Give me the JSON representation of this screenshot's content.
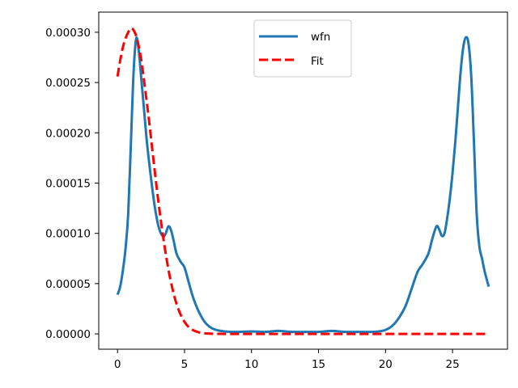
{
  "chart_data": {
    "type": "line",
    "title": "",
    "xlabel": "",
    "ylabel": "",
    "xlim": [
      -1.4,
      29.1
    ],
    "ylim": [
      -1.52e-05,
      0.00032
    ],
    "xticks": [
      0,
      5,
      10,
      15,
      20,
      25
    ],
    "xtick_labels": [
      "0",
      "5",
      "10",
      "15",
      "20",
      "25"
    ],
    "yticks": [
      0,
      5e-05,
      0.0001,
      0.00015,
      0.0002,
      0.00025,
      0.0003
    ],
    "ytick_labels": [
      "0.00000",
      "0.00005",
      "0.00010",
      "0.00015",
      "0.00020",
      "0.00025",
      "0.00030"
    ],
    "grid": false,
    "legend_position": "top-center",
    "series": [
      {
        "name": "wfn",
        "color": "#1f77b4",
        "style": "solid",
        "x": [
          0,
          0.2,
          0.4,
          0.6,
          0.8,
          1.0,
          1.2,
          1.4,
          1.6,
          1.8,
          2.0,
          2.2,
          2.5,
          2.8,
          3.1,
          3.4,
          3.6,
          3.8,
          4.0,
          4.2,
          4.4,
          4.7,
          5.0,
          5.3,
          5.6,
          6.0,
          6.5,
          7.0,
          7.5,
          8.0,
          8.5,
          9.0,
          10,
          11,
          12,
          13,
          14,
          15,
          16,
          17,
          18,
          19,
          19.5,
          20,
          20.5,
          21,
          21.5,
          22,
          22.4,
          22.8,
          23.2,
          23.5,
          23.8,
          24.0,
          24.2,
          24.4,
          24.6,
          24.8,
          25.0,
          25.2,
          25.4,
          25.6,
          25.8,
          26.0,
          26.2,
          26.4,
          26.6,
          26.8,
          27.0,
          27.2,
          27.4,
          27.7
        ],
        "values": [
          3.9e-05,
          4.7e-05,
          6.3e-05,
          8.5e-05,
          0.00012,
          0.00019,
          0.00026,
          0.000294,
          0.00028,
          0.00025,
          0.00022,
          0.00019,
          0.000155,
          0.000125,
          0.000105,
          9.7e-05,
          0.0001,
          0.000107,
          0.000103,
          9.2e-05,
          8e-05,
          7.2e-05,
          6.6e-05,
          5.2e-05,
          3.8e-05,
          2.4e-05,
          1.2e-05,
          6e-06,
          3.5e-06,
          2.5e-06,
          2e-06,
          2e-06,
          2.5e-06,
          2e-06,
          3e-06,
          2e-06,
          2e-06,
          2e-06,
          3e-06,
          2e-06,
          2e-06,
          2e-06,
          2.5e-06,
          4e-06,
          8e-06,
          1.6e-05,
          2.8e-05,
          4.7e-05,
          6.2e-05,
          7e-05,
          8e-05,
          9.5e-05,
          0.000107,
          0.000104,
          9.75e-05,
          0.0001,
          0.000115,
          0.000135,
          0.00016,
          0.00019,
          0.000225,
          0.00026,
          0.000285,
          0.000295,
          0.000288,
          0.000255,
          0.00019,
          0.00012,
          8.7e-05,
          7.5e-05,
          6.2e-05,
          4.7e-05
        ]
      },
      {
        "name": "Fit",
        "color": "#ff0000",
        "style": "dashed",
        "x": [
          0,
          0.2,
          0.4,
          0.6,
          0.8,
          1.0,
          1.2,
          1.4,
          1.6,
          1.8,
          2.0,
          2.3,
          2.6,
          2.9,
          3.2,
          3.5,
          3.8,
          4.1,
          4.4,
          4.7,
          5.0,
          5.3,
          5.6,
          6.0,
          6.5,
          7.0,
          7.5,
          8.0,
          9.0,
          10,
          12,
          14,
          16,
          18,
          20,
          22,
          24,
          26,
          27.7
        ],
        "values": [
          0.000256,
          0.000272,
          0.000285,
          0.000294,
          0.0003,
          0.000304,
          0.000302,
          0.000296,
          0.000285,
          0.00027,
          0.00025,
          0.000218,
          0.000183,
          0.000148,
          0.000116,
          8.8e-05,
          6.4e-05,
          4.5e-05,
          3e-05,
          1.95e-05,
          1.2e-05,
          7e-06,
          4e-06,
          1.8e-06,
          6e-07,
          2e-07,
          5e-08,
          0,
          0,
          0,
          0,
          0,
          0,
          0,
          0,
          0,
          0,
          0,
          0
        ]
      }
    ]
  }
}
